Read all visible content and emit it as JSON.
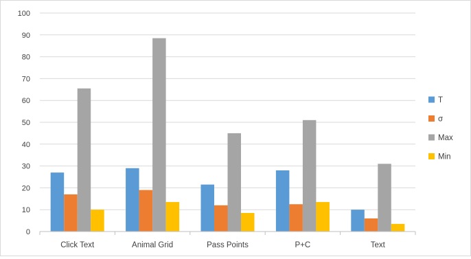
{
  "chart_data": {
    "type": "bar",
    "title": "",
    "xlabel": "",
    "ylabel": "",
    "categories": [
      "Click Text",
      "Animal Grid",
      "Pass Points",
      "P+C",
      "Text"
    ],
    "series": [
      {
        "name": "T",
        "color": "#5b9bd5",
        "values": [
          27,
          29,
          21.5,
          28,
          10
        ]
      },
      {
        "name": "σ",
        "color": "#ed7d31",
        "values": [
          17,
          19,
          12,
          12.5,
          6
        ]
      },
      {
        "name": "Max",
        "color": "#a5a5a5",
        "values": [
          65.5,
          88.5,
          45,
          51,
          31
        ]
      },
      {
        "name": "Min",
        "color": "#ffc000",
        "values": [
          10,
          13.5,
          8.5,
          13.5,
          3.5
        ]
      }
    ],
    "ylim": [
      0,
      100
    ],
    "yticks": [
      0,
      10,
      20,
      30,
      40,
      50,
      60,
      70,
      80,
      90,
      100
    ],
    "grid": true,
    "legend_position": "right"
  }
}
